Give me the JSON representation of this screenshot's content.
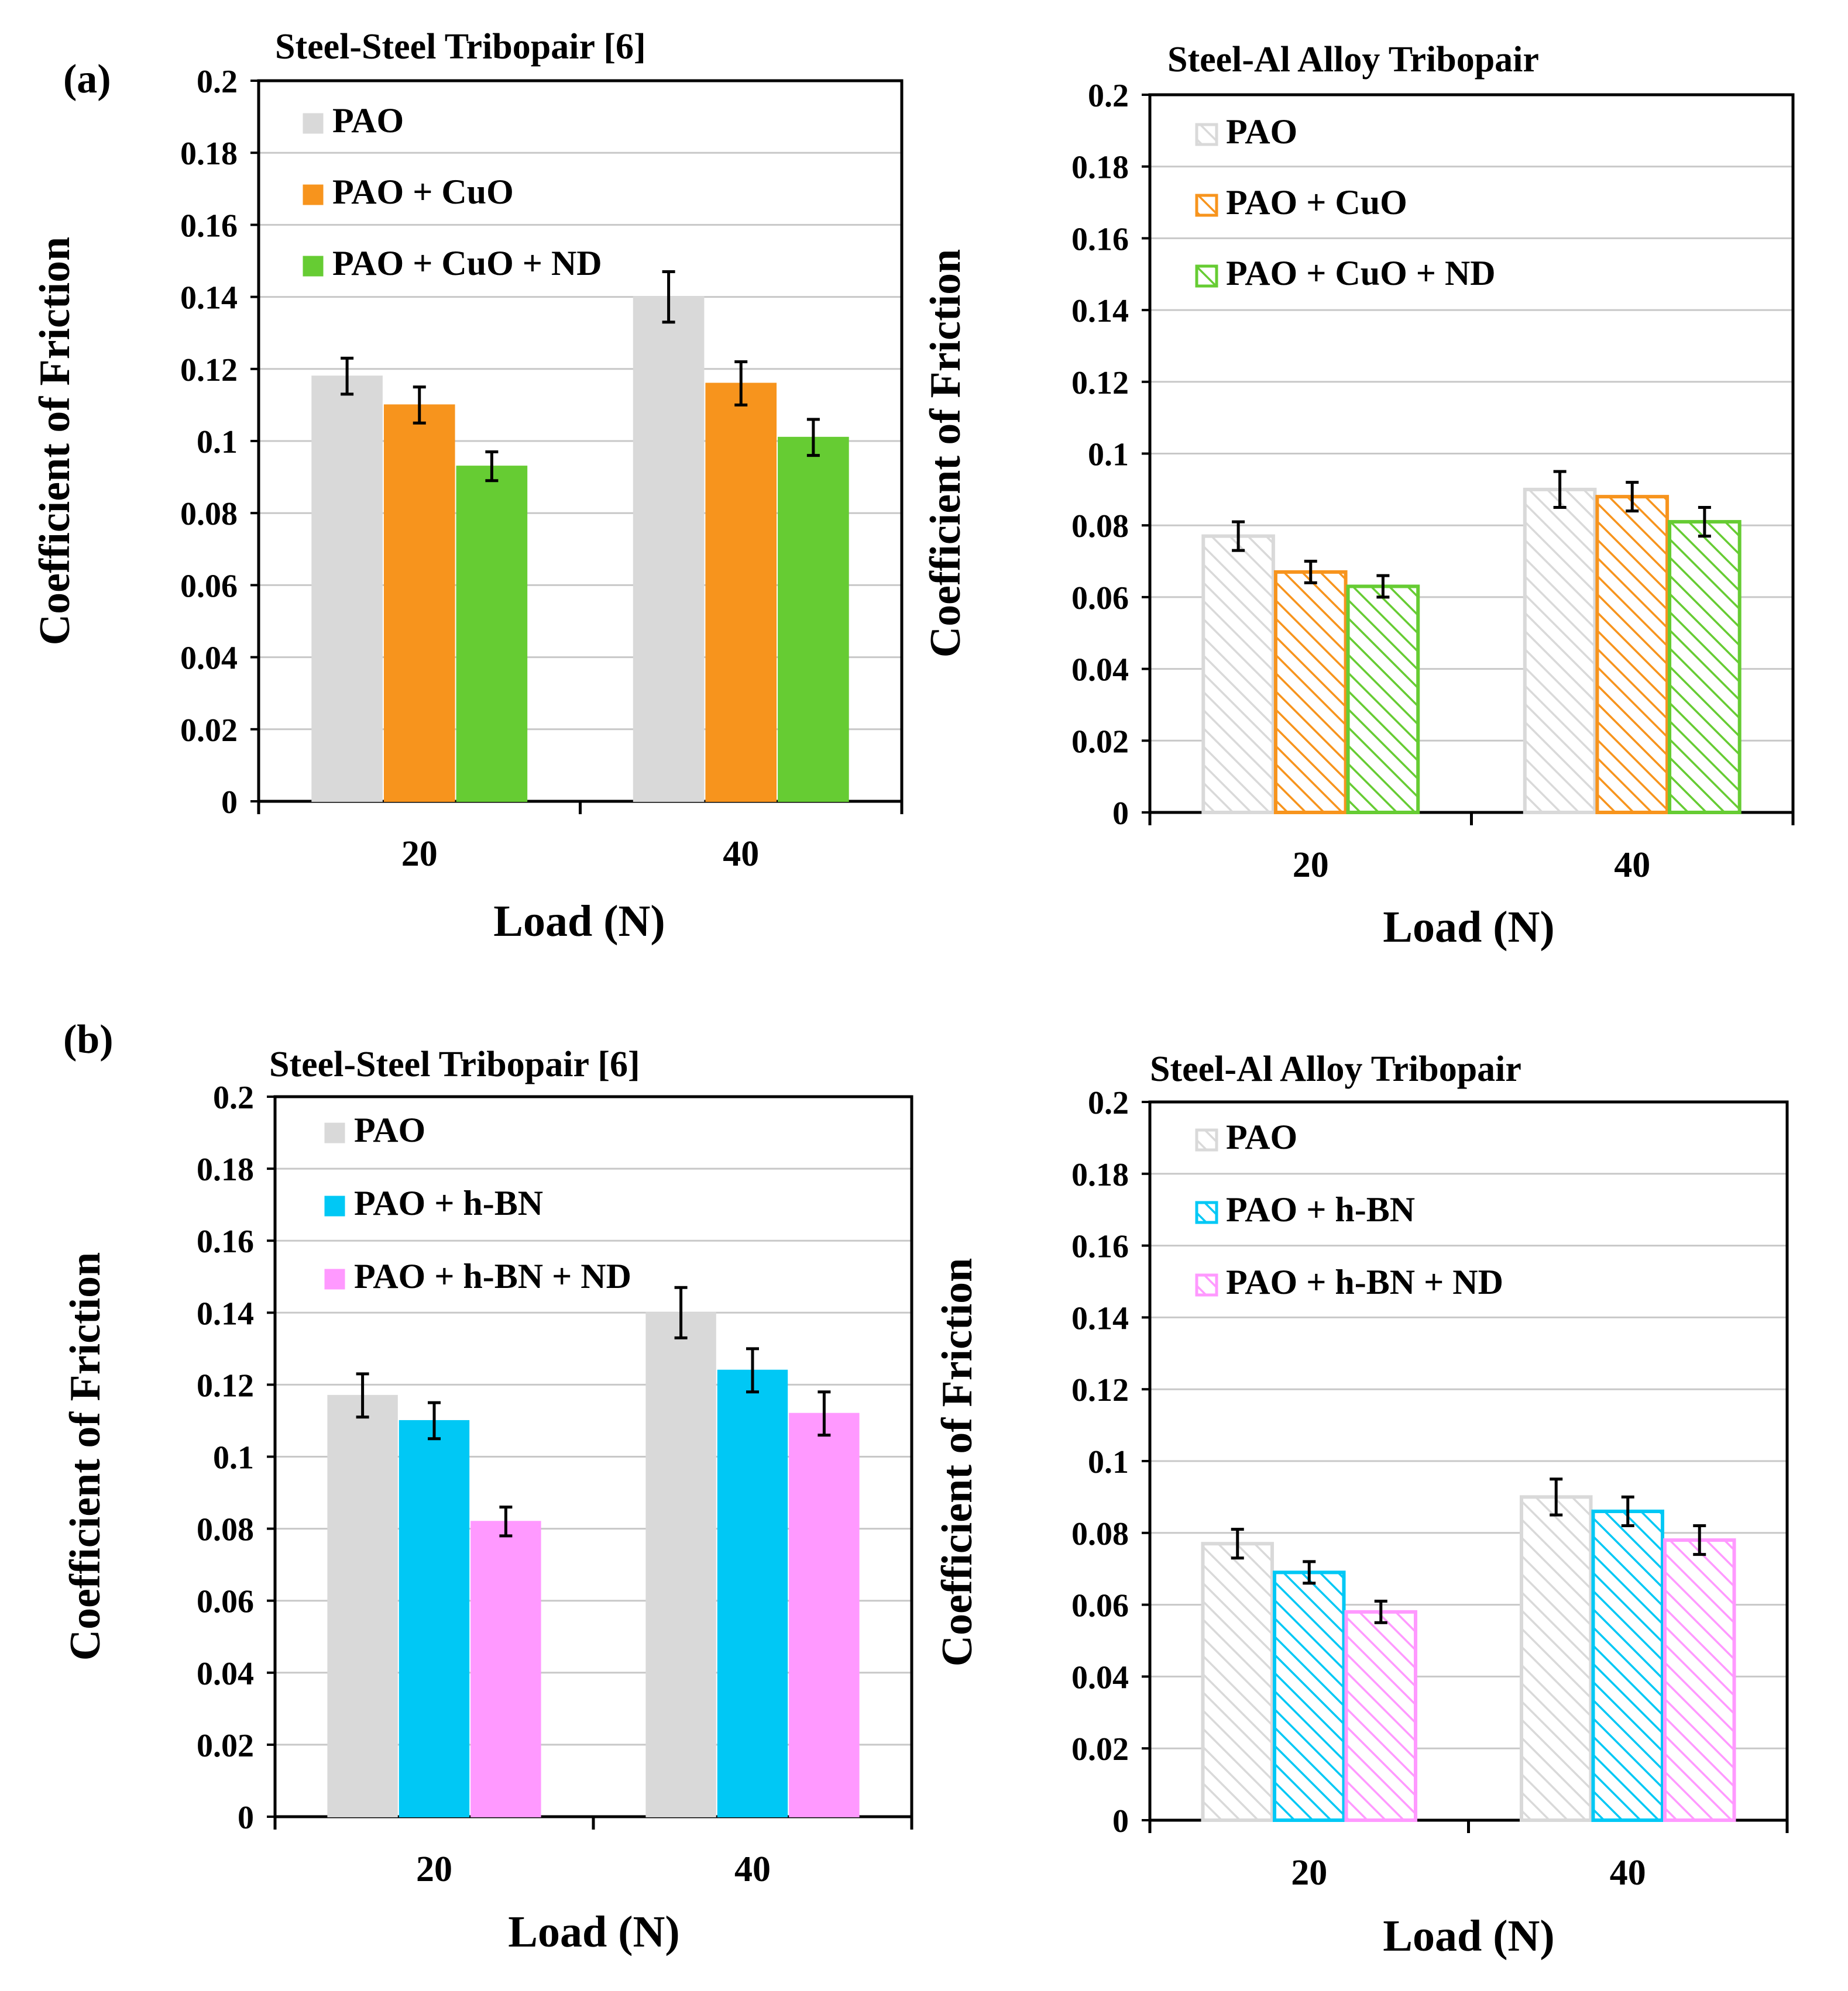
{
  "panel_labels": [
    "(a)",
    "(b)"
  ],
  "colors": {
    "PAO": "#d9d9d9",
    "PAO + CuO": "#f7941d",
    "PAO + CuO + ND": "#66cc33",
    "PAO + h-BN": "#00c8f5",
    "PAO + h-BN + ND": "#ff99ff"
  },
  "chart_data": [
    {
      "type": "bar",
      "panel": "(a)",
      "title": "Steel-Steel Tribopair [6]",
      "xlabel": "Load (N)",
      "ylabel": "Coefficient of Friction",
      "categories": [
        "20",
        "40"
      ],
      "ylim": [
        0,
        0.2
      ],
      "yticks": [
        "0",
        "0.02",
        "0.04",
        "0.06",
        "0.08",
        "0.1",
        "0.12",
        "0.14",
        "0.16",
        "0.18",
        "0.2"
      ],
      "grid": true,
      "legend": "top-left",
      "hatched": false,
      "series": [
        {
          "name": "PAO",
          "values": [
            0.118,
            0.14
          ],
          "errors": [
            0.005,
            0.007
          ]
        },
        {
          "name": "PAO + CuO",
          "values": [
            0.11,
            0.116
          ],
          "errors": [
            0.005,
            0.006
          ]
        },
        {
          "name": "PAO + CuO + ND",
          "values": [
            0.093,
            0.101
          ],
          "errors": [
            0.004,
            0.005
          ]
        }
      ]
    },
    {
      "type": "bar",
      "panel": "(a)",
      "title": "Steel-Al Alloy Tribopair",
      "xlabel": "Load (N)",
      "ylabel": "Coefficient of Friction",
      "categories": [
        "20",
        "40"
      ],
      "ylim": [
        0,
        0.2
      ],
      "yticks": [
        "0",
        "0.02",
        "0.04",
        "0.06",
        "0.08",
        "0.1",
        "0.12",
        "0.14",
        "0.16",
        "0.18",
        "0.2"
      ],
      "grid": true,
      "legend": "top-left",
      "hatched": true,
      "series": [
        {
          "name": "PAO",
          "values": [
            0.077,
            0.09
          ],
          "errors": [
            0.004,
            0.005
          ]
        },
        {
          "name": "PAO + CuO",
          "values": [
            0.067,
            0.088
          ],
          "errors": [
            0.003,
            0.004
          ]
        },
        {
          "name": "PAO + CuO + ND",
          "values": [
            0.063,
            0.081
          ],
          "errors": [
            0.003,
            0.004
          ]
        }
      ]
    },
    {
      "type": "bar",
      "panel": "(b)",
      "title": "Steel-Steel Tribopair [6]",
      "xlabel": "Load (N)",
      "ylabel": "Coefficient of Friction",
      "categories": [
        "20",
        "40"
      ],
      "ylim": [
        0,
        0.2
      ],
      "yticks": [
        "0",
        "0.02",
        "0.04",
        "0.06",
        "0.08",
        "0.1",
        "0.12",
        "0.14",
        "0.16",
        "0.18",
        "0.2"
      ],
      "grid": true,
      "legend": "top-left",
      "hatched": false,
      "series": [
        {
          "name": "PAO",
          "values": [
            0.117,
            0.14
          ],
          "errors": [
            0.006,
            0.007
          ]
        },
        {
          "name": "PAO + h-BN",
          "values": [
            0.11,
            0.124
          ],
          "errors": [
            0.005,
            0.006
          ]
        },
        {
          "name": "PAO + h-BN + ND",
          "values": [
            0.082,
            0.112
          ],
          "errors": [
            0.004,
            0.006
          ]
        }
      ]
    },
    {
      "type": "bar",
      "panel": "(b)",
      "title": "Steel-Al Alloy Tribopair",
      "xlabel": "Load (N)",
      "ylabel": "Coefficient of Friction",
      "categories": [
        "20",
        "40"
      ],
      "ylim": [
        0,
        0.2
      ],
      "yticks": [
        "0",
        "0.02",
        "0.04",
        "0.06",
        "0.08",
        "0.1",
        "0.12",
        "0.14",
        "0.16",
        "0.18",
        "0.2"
      ],
      "grid": true,
      "legend": "top-left",
      "hatched": true,
      "series": [
        {
          "name": "PAO",
          "values": [
            0.077,
            0.09
          ],
          "errors": [
            0.004,
            0.005
          ]
        },
        {
          "name": "PAO + h-BN",
          "values": [
            0.069,
            0.086
          ],
          "errors": [
            0.003,
            0.004
          ]
        },
        {
          "name": "PAO + h-BN + ND",
          "values": [
            0.058,
            0.078
          ],
          "errors": [
            0.003,
            0.004
          ]
        }
      ]
    }
  ]
}
